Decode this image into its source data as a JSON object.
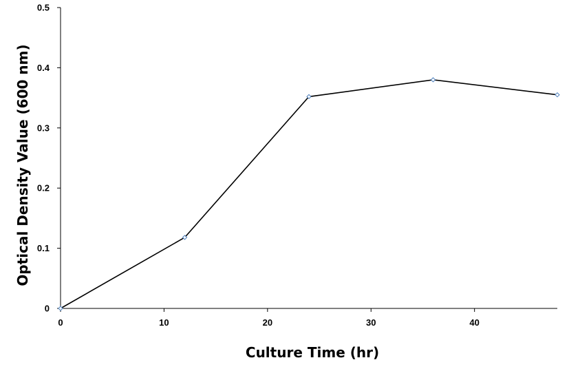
{
  "chart_data": {
    "type": "line",
    "title": "",
    "xlabel": "Culture Time (hr)",
    "ylabel": "Optical Density Value (600 nm)",
    "xlim": [
      0,
      48
    ],
    "ylim": [
      0,
      0.5
    ],
    "x_ticks": [
      0,
      10,
      20,
      30,
      40
    ],
    "y_ticks": [
      0,
      0.1,
      0.2,
      0.3,
      0.4,
      0.5
    ],
    "x_tick_labels": [
      "0",
      "10",
      "20",
      "30",
      "40"
    ],
    "y_tick_labels": [
      "0",
      "0.1",
      "0.2",
      "0.3",
      "0.4",
      "0.5"
    ],
    "grid": false,
    "legend": "none",
    "series": [
      {
        "x": [
          0,
          12,
          24,
          36,
          48
        ],
        "y": [
          0,
          0.118,
          0.352,
          0.38,
          0.355
        ],
        "line_color": "#000000",
        "marker_color": "#4f81bd"
      }
    ]
  }
}
